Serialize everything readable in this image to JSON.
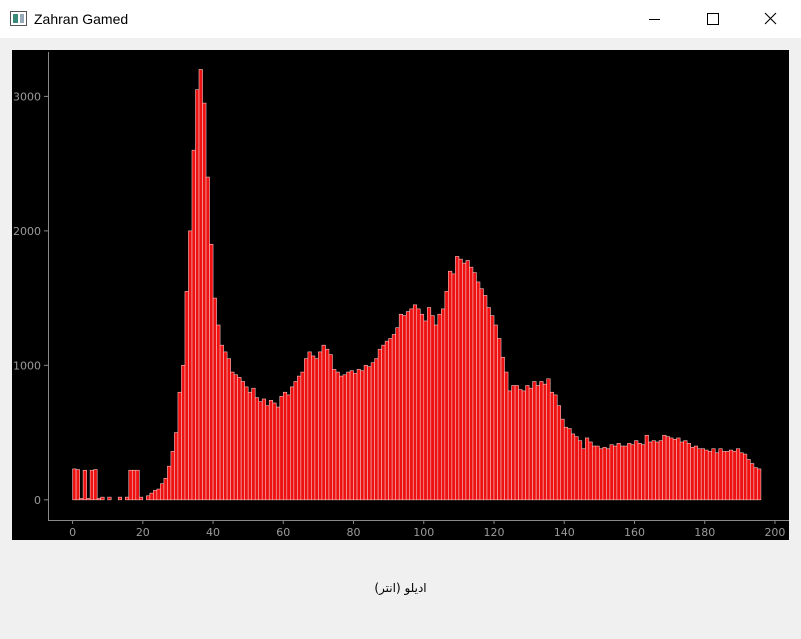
{
  "window_title": "Zahran Gamed",
  "label": "ادیلو (انتر)",
  "chart_data": {
    "type": "histogram",
    "color": "#ee1111",
    "edge_color": "#f4c0c0",
    "bins": [
      0,
      1,
      2,
      3,
      4,
      5,
      6,
      7,
      8,
      9,
      10,
      11,
      12,
      13,
      14,
      15,
      16,
      17,
      18,
      19,
      20,
      21,
      22,
      23,
      24,
      25,
      26,
      27,
      28,
      29,
      30,
      31,
      32,
      33,
      34,
      35,
      36,
      37,
      38,
      39,
      40,
      41,
      42,
      43,
      44,
      45,
      46,
      47,
      48,
      49,
      50,
      51,
      52,
      53,
      54,
      55,
      56,
      57,
      58,
      59,
      60,
      61,
      62,
      63,
      64,
      65,
      66,
      67,
      68,
      69,
      70,
      71,
      72,
      73,
      74,
      75,
      76,
      77,
      78,
      79,
      80,
      81,
      82,
      83,
      84,
      85,
      86,
      87,
      88,
      89,
      90,
      91,
      92,
      93,
      94,
      95,
      96,
      97,
      98,
      99,
      100,
      101,
      102,
      103,
      104,
      105,
      106,
      107,
      108,
      109,
      110,
      111,
      112,
      113,
      114,
      115,
      116,
      117,
      118,
      119,
      120,
      121,
      122,
      123,
      124,
      125,
      126,
      127,
      128,
      129,
      130,
      131,
      132,
      133,
      134,
      135,
      136,
      137,
      138,
      139,
      140,
      141,
      142,
      143,
      144,
      145,
      146,
      147,
      148,
      149,
      150,
      151,
      152,
      153,
      154,
      155,
      156,
      157,
      158,
      159,
      160,
      161,
      162,
      163,
      164,
      165,
      166,
      167,
      168,
      169,
      170,
      171,
      172,
      173,
      174,
      175,
      176,
      177,
      178,
      179,
      180,
      181,
      182,
      183,
      184,
      185,
      186,
      187,
      188,
      189,
      190,
      191,
      192,
      193,
      194,
      195,
      196
    ],
    "values": [
      230,
      225,
      10,
      220,
      10,
      220,
      225,
      10,
      20,
      0,
      20,
      0,
      0,
      20,
      0,
      20,
      220,
      220,
      220,
      20,
      0,
      30,
      50,
      70,
      80,
      120,
      160,
      250,
      360,
      500,
      800,
      1000,
      1550,
      2000,
      2600,
      3050,
      3200,
      2950,
      2400,
      1900,
      1500,
      1300,
      1150,
      1100,
      1050,
      950,
      930,
      910,
      880,
      840,
      800,
      830,
      760,
      730,
      750,
      700,
      740,
      720,
      690,
      770,
      800,
      780,
      840,
      880,
      920,
      950,
      1050,
      1100,
      1070,
      1050,
      1100,
      1150,
      1120,
      1080,
      970,
      950,
      920,
      930,
      950,
      960,
      940,
      970,
      960,
      1000,
      990,
      1020,
      1050,
      1120,
      1150,
      1180,
      1200,
      1230,
      1280,
      1380,
      1370,
      1400,
      1420,
      1450,
      1420,
      1380,
      1330,
      1430,
      1370,
      1300,
      1380,
      1420,
      1550,
      1700,
      1680,
      1810,
      1790,
      1760,
      1780,
      1730,
      1690,
      1620,
      1570,
      1520,
      1430,
      1370,
      1300,
      1200,
      1060,
      950,
      810,
      850,
      850,
      820,
      810,
      850,
      830,
      880,
      850,
      880,
      860,
      900,
      800,
      780,
      700,
      600,
      540,
      530,
      490,
      470,
      440,
      380,
      460,
      430,
      400,
      400,
      380,
      390,
      380,
      410,
      400,
      420,
      400,
      400,
      420,
      410,
      440,
      420,
      410,
      480,
      430,
      440,
      430,
      440,
      480,
      470,
      460,
      450,
      460,
      430,
      440,
      420,
      390,
      400,
      380,
      380,
      370,
      360,
      380,
      350,
      380,
      360,
      360,
      370,
      360,
      380,
      350,
      340,
      300,
      270,
      240,
      230
    ],
    "xlim": [
      -7,
      204
    ],
    "ylim": [
      -150,
      3330
    ],
    "xticks": [
      0,
      20,
      40,
      60,
      80,
      100,
      120,
      140,
      160,
      180,
      200
    ],
    "yticks": [
      0,
      1000,
      2000,
      3000
    ]
  }
}
